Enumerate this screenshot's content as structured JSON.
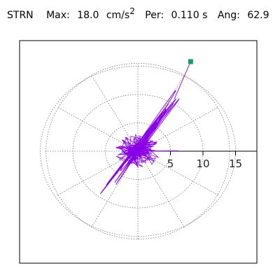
{
  "header": {
    "station": "STRN",
    "max_label": "Max:",
    "max_value": "18.0",
    "max_unit": "cm/s",
    "max_unit_power": "2",
    "per_label": "Per:",
    "per_value": "0.110 s",
    "ang_label": "Ang:",
    "ang_value": "62.9"
  },
  "chart_data": {
    "type": "line",
    "title": "",
    "xlabel": "",
    "ylabel": "",
    "axis_ticks": [
      "5",
      "10",
      "15"
    ],
    "xlim": [
      -18.5,
      18.5
    ],
    "ylim": [
      -18.5,
      18.5
    ],
    "polar_rings": [
      5,
      10,
      15
    ],
    "polar_spokes_deg": [
      0,
      30,
      60,
      90,
      120,
      150
    ],
    "grid": true,
    "series": [
      {
        "color": "#8a00e6",
        "x": [
          0,
          1.5,
          -1.2,
          2.1,
          -2.4,
          1.0,
          -0.6,
          3.4,
          -3.2,
          5.1,
          -4.6,
          6.8,
          -6.2,
          4.0,
          -2.5,
          7.2,
          -7.8,
          9.0,
          -8.9,
          6.0,
          -3.8,
          8.8,
          -5.5,
          7.9,
          2.0,
          -1.6,
          0.8,
          6.4,
          -9.2,
          3.1,
          7.5,
          -6.5,
          10.2,
          -4.1,
          5.6,
          -7.0,
          8.2,
          -2.2,
          4.6,
          -3.0,
          1.4,
          0.3
        ],
        "y": [
          0,
          2.8,
          -1.6,
          3.8,
          -3.4,
          1.2,
          -0.9,
          6.2,
          -5.3,
          9.0,
          -8.0,
          11.5,
          -10.8,
          7.0,
          -4.5,
          12.4,
          -10.6,
          14.8,
          -11.9,
          9.6,
          -6.5,
          13.6,
          -7.2,
          12.0,
          4.2,
          -2.6,
          1.0,
          10.8,
          -12.6,
          5.4,
          13.8,
          -9.4,
          15.0,
          -6.8,
          9.2,
          -11.0,
          13.0,
          -3.6,
          7.6,
          -5.0,
          2.0,
          0.4
        ]
      }
    ],
    "peak_marker": {
      "x": 8.1,
      "y": 15.8,
      "color": "#0f9a70"
    }
  }
}
